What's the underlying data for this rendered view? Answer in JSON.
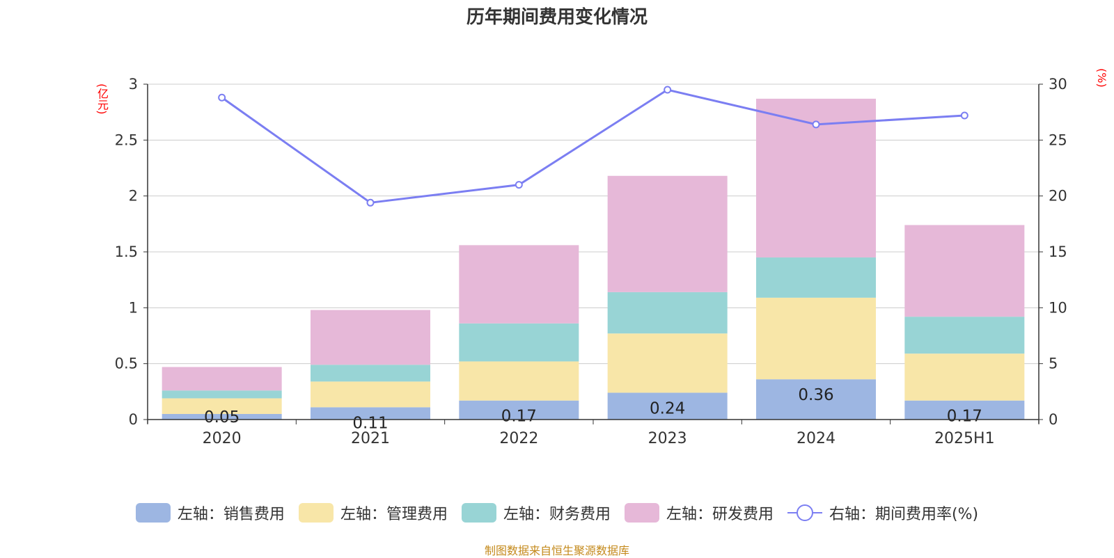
{
  "title": "历年期间费用变化情况",
  "left_axis_unit": "(亿元)",
  "right_axis_unit": "(%)",
  "source": "制图数据来自恒生聚源数据库",
  "colors": {
    "sales": "#9db6e2",
    "admin": "#f8e6a8",
    "finance": "#98d4d5",
    "rd": "#e6b8d8",
    "rate": "#7b7ef2",
    "grid": "#cccccc",
    "axis": "#333333"
  },
  "legend": [
    {
      "label": "左轴：销售费用",
      "kind": "bar",
      "color": "#9db6e2"
    },
    {
      "label": "左轴：管理费用",
      "kind": "bar",
      "color": "#f8e6a8"
    },
    {
      "label": "左轴：财务费用",
      "kind": "bar",
      "color": "#98d4d5"
    },
    {
      "label": "左轴：研发费用",
      "kind": "bar",
      "color": "#e6b8d8"
    },
    {
      "label": "右轴：期间费用率(%)",
      "kind": "line",
      "color": "#7b7ef2"
    }
  ],
  "chart_data": {
    "type": "bar",
    "stacked": true,
    "categories": [
      "2020",
      "2021",
      "2022",
      "2023",
      "2024",
      "2025H1"
    ],
    "series": [
      {
        "name": "左轴：销售费用",
        "axis": "left",
        "values": [
          0.05,
          0.11,
          0.17,
          0.24,
          0.36,
          0.17
        ],
        "data_labels": [
          "0.05",
          "0.11",
          "0.17",
          "0.24",
          "0.36",
          "0.17"
        ]
      },
      {
        "name": "左轴：管理费用",
        "axis": "left",
        "values": [
          0.14,
          0.23,
          0.35,
          0.53,
          0.73,
          0.42
        ]
      },
      {
        "name": "左轴：财务费用",
        "axis": "left",
        "values": [
          0.07,
          0.15,
          0.34,
          0.37,
          0.36,
          0.33
        ]
      },
      {
        "name": "左轴：研发费用",
        "axis": "left",
        "values": [
          0.21,
          0.49,
          0.7,
          1.04,
          1.42,
          0.82
        ]
      },
      {
        "name": "右轴：期间费用率(%)",
        "axis": "right",
        "type": "line",
        "values": [
          28.8,
          19.4,
          21.0,
          29.5,
          26.4,
          27.2
        ]
      }
    ],
    "y_left": {
      "min": 0,
      "max": 3,
      "ticks": [
        "0",
        "0.5",
        "1",
        "1.5",
        "2",
        "2.5",
        "3"
      ]
    },
    "y_right": {
      "min": 0,
      "max": 30,
      "ticks": [
        "0",
        "5",
        "10",
        "15",
        "20",
        "25",
        "30"
      ]
    },
    "grid": true,
    "legend_position": "bottom"
  }
}
